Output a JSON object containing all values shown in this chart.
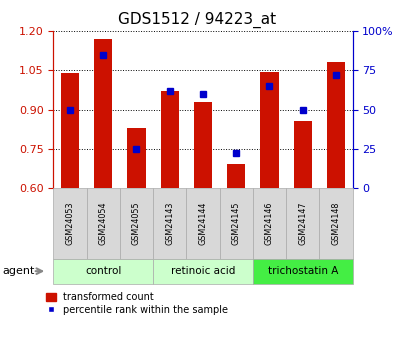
{
  "title": "GDS1512 / 94223_at",
  "categories": [
    "GSM24053",
    "GSM24054",
    "GSM24055",
    "GSM24143",
    "GSM24144",
    "GSM24145",
    "GSM24146",
    "GSM24147",
    "GSM24148"
  ],
  "red_values": [
    1.04,
    1.17,
    0.83,
    0.97,
    0.93,
    0.69,
    1.045,
    0.855,
    1.08
  ],
  "blue_values": [
    50,
    85,
    25,
    62,
    60,
    22,
    65,
    50,
    72
  ],
  "ylim_left": [
    0.6,
    1.2
  ],
  "ylim_right": [
    0,
    100
  ],
  "yticks_left": [
    0.6,
    0.75,
    0.9,
    1.05,
    1.2
  ],
  "yticks_right": [
    0,
    25,
    50,
    75,
    100
  ],
  "ytick_labels_right": [
    "0",
    "25",
    "50",
    "75",
    "100%"
  ],
  "groups": [
    {
      "label": "control",
      "indices": [
        0,
        1,
        2
      ],
      "color": "#ccffcc"
    },
    {
      "label": "retinoic acid",
      "indices": [
        3,
        4,
        5
      ],
      "color": "#ccffcc"
    },
    {
      "label": "trichostatin A",
      "indices": [
        6,
        7,
        8
      ],
      "color": "#44ee44"
    }
  ],
  "bar_color": "#cc1100",
  "marker_color": "#0000cc",
  "bar_width": 0.55,
  "legend_items": [
    "transformed count",
    "percentile rank within the sample"
  ],
  "agent_label": "agent",
  "title_fontsize": 11,
  "tick_fontsize": 8,
  "sample_cell_color": "#d8d8d8",
  "sample_cell_edge": "#aaaaaa"
}
